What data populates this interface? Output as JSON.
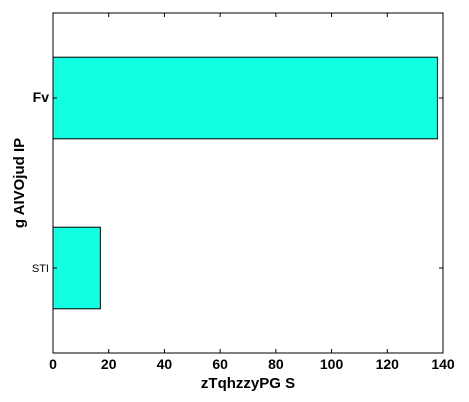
{
  "chart_data": {
    "type": "bar",
    "orientation": "horizontal",
    "categories": [
      "STI",
      "Fv"
    ],
    "values": [
      17,
      138
    ],
    "xlabel": "zTqhzzyPG S",
    "ylabel": "g AIVOjud   IP",
    "xlim": [
      0,
      140
    ],
    "xticks": [
      0,
      20,
      40,
      60,
      80,
      100,
      120,
      140
    ],
    "grid": false,
    "bar_color": "#12ffe2",
    "edge_color": "#000000"
  }
}
